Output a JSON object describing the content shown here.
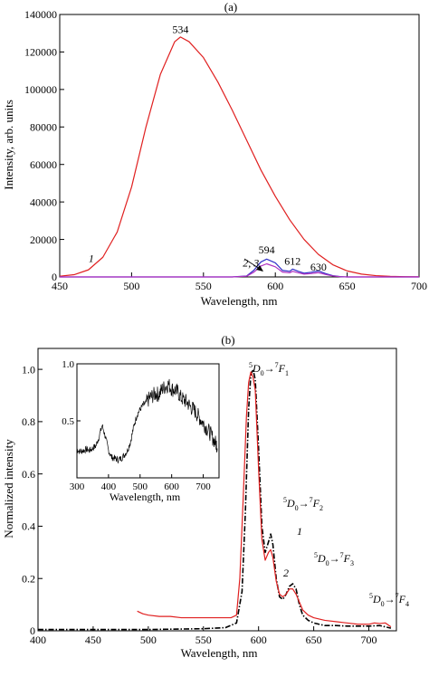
{
  "chart_data": [
    {
      "panel_label": "(a)",
      "type": "line",
      "xlabel": "Wavelength, nm",
      "ylabel": "Intensity, arb. units",
      "xlim": [
        450,
        700
      ],
      "ylim": [
        0,
        140000
      ],
      "xticks": [
        450,
        500,
        550,
        600,
        650,
        700
      ],
      "yticks": [
        0,
        20000,
        40000,
        60000,
        80000,
        100000,
        120000,
        140000
      ],
      "grid": false,
      "legend": "none",
      "series": [
        {
          "name": "1",
          "color": "#e02020",
          "x": [
            450,
            460,
            470,
            480,
            490,
            500,
            510,
            520,
            530,
            534,
            540,
            550,
            560,
            570,
            580,
            590,
            600,
            610,
            620,
            630,
            640,
            650,
            660,
            670,
            680,
            690,
            700
          ],
          "y": [
            400,
            1200,
            3800,
            10500,
            24000,
            48000,
            80000,
            108000,
            125500,
            128000,
            125500,
            117000,
            104000,
            89000,
            73000,
            57000,
            43000,
            30500,
            20000,
            12000,
            6500,
            3200,
            1500,
            700,
            300,
            120,
            60
          ]
        },
        {
          "name": "2",
          "color": "#3030c8",
          "x": [
            450,
            570,
            580,
            585,
            590,
            594,
            600,
            605,
            610,
            612,
            616,
            620,
            625,
            630,
            635,
            640,
            645,
            650,
            700
          ],
          "y": [
            0,
            0,
            500,
            3500,
            8000,
            9500,
            7500,
            3500,
            3000,
            4200,
            3000,
            2000,
            2500,
            3200,
            1800,
            700,
            200,
            0,
            0
          ]
        },
        {
          "name": "3",
          "color": "#b030c0",
          "x": [
            450,
            570,
            580,
            585,
            590,
            594,
            600,
            605,
            610,
            612,
            616,
            620,
            625,
            630,
            635,
            640,
            645,
            650,
            700
          ],
          "y": [
            0,
            0,
            400,
            2500,
            5800,
            7000,
            5400,
            2600,
            2200,
            3000,
            2200,
            1500,
            1800,
            2300,
            1300,
            500,
            150,
            0,
            0
          ]
        }
      ],
      "annotations": [
        {
          "text": "534",
          "x": 534,
          "y": 130000
        },
        {
          "text": "594",
          "x": 594,
          "y": 12500
        },
        {
          "text": "612",
          "x": 612,
          "y": 6500
        },
        {
          "text": "630",
          "x": 630,
          "y": 3500
        },
        {
          "text": "1",
          "x": 472,
          "y": 8000
        },
        {
          "text": "2, 3",
          "x": 583,
          "y": 5500
        }
      ]
    },
    {
      "panel_label": "(b)",
      "type": "line",
      "xlabel": "Wavelength, nm",
      "ylabel": "Normalized intensity",
      "xlim": [
        400,
        725
      ],
      "ylim": [
        0,
        1.08
      ],
      "xticks": [
        400,
        450,
        500,
        550,
        600,
        650,
        700
      ],
      "yticks": [
        0,
        0.2,
        0.4,
        0.6,
        0.8,
        1.0
      ],
      "grid": false,
      "legend": "none",
      "series": [
        {
          "name": "1",
          "color": "#000000",
          "style": "dash-dot",
          "x": [
            400,
            500,
            550,
            570,
            580,
            585,
            588,
            591,
            593,
            595,
            597,
            600,
            603,
            606,
            609,
            611,
            613,
            616,
            619,
            622,
            625,
            628,
            631,
            634,
            637,
            640,
            645,
            650,
            660,
            670,
            680,
            690,
            700,
            710,
            720
          ],
          "y": [
            0.005,
            0.005,
            0.008,
            0.012,
            0.03,
            0.15,
            0.45,
            0.85,
            0.98,
            1.0,
            0.96,
            0.7,
            0.4,
            0.3,
            0.34,
            0.37,
            0.33,
            0.2,
            0.13,
            0.12,
            0.14,
            0.17,
            0.18,
            0.16,
            0.1,
            0.06,
            0.04,
            0.03,
            0.02,
            0.02,
            0.018,
            0.018,
            0.018,
            0.02,
            0.01
          ]
        },
        {
          "name": "2",
          "color": "#e02020",
          "style": "solid",
          "x": [
            490,
            495,
            500,
            510,
            520,
            530,
            540,
            550,
            560,
            570,
            575,
            580,
            583,
            586,
            589,
            591,
            593,
            595,
            597,
            600,
            603,
            606,
            609,
            611,
            613,
            616,
            619,
            622,
            625,
            628,
            631,
            634,
            637,
            640,
            645,
            650,
            660,
            670,
            680,
            690,
            700,
            705,
            710,
            715,
            720
          ],
          "y": [
            0.075,
            0.065,
            0.06,
            0.055,
            0.055,
            0.05,
            0.05,
            0.05,
            0.05,
            0.05,
            0.05,
            0.06,
            0.2,
            0.5,
            0.82,
            0.95,
            0.99,
            0.97,
            0.92,
            0.62,
            0.35,
            0.27,
            0.3,
            0.31,
            0.28,
            0.19,
            0.14,
            0.13,
            0.14,
            0.16,
            0.16,
            0.14,
            0.11,
            0.08,
            0.06,
            0.05,
            0.04,
            0.035,
            0.03,
            0.025,
            0.025,
            0.03,
            0.028,
            0.03,
            0.015
          ]
        }
      ],
      "annotations": [
        {
          "text": "5",
          "part": "D0-F1",
          "x": 592,
          "y": 1.04
        },
        {
          "text": "1",
          "x": 610,
          "y": 0.38
        },
        {
          "text": "2",
          "x": 608,
          "y": 0.2
        }
      ],
      "transitions": [
        {
          "sup1": "5",
          "letter1": "D",
          "sub1": "0",
          "arrow": "→",
          "sup2": "7",
          "letter2": "F",
          "sub2": "1"
        },
        {
          "sup1": "5",
          "letter1": "D",
          "sub1": "0",
          "arrow": "→",
          "sup2": "7",
          "letter2": "F",
          "sub2": "2"
        },
        {
          "sup1": "5",
          "letter1": "D",
          "sub1": "0",
          "arrow": "→",
          "sup2": "7",
          "letter2": "F",
          "sub2": "3"
        },
        {
          "sup1": "5",
          "letter1": "D",
          "sub1": "0",
          "arrow": "→",
          "sup2": "7",
          "letter2": "F",
          "sub2": "4"
        }
      ],
      "inset": {
        "type": "line",
        "xlabel": "Wavelength, nm",
        "xlim": [
          300,
          750
        ],
        "ylim": [
          0,
          1.0
        ],
        "xticks": [
          300,
          400,
          500,
          600,
          700
        ],
        "yticks": [
          0.5,
          1.0
        ],
        "series": [
          {
            "color": "#000000",
            "x": [
              300,
              310,
              320,
              330,
              340,
              350,
              360,
              370,
              380,
              390,
              400,
              410,
              420,
              430,
              440,
              450,
              460,
              470,
              480,
              490,
              500,
              510,
              520,
              530,
              540,
              550,
              560,
              570,
              580,
              590,
              600,
              610,
              620,
              630,
              640,
              650,
              660,
              670,
              680,
              690,
              700,
              710,
              720,
              730,
              740,
              745
            ],
            "y": [
              0.25,
              0.23,
              0.24,
              0.25,
              0.24,
              0.26,
              0.28,
              0.36,
              0.46,
              0.36,
              0.24,
              0.18,
              0.17,
              0.16,
              0.17,
              0.2,
              0.24,
              0.32,
              0.45,
              0.55,
              0.6,
              0.64,
              0.66,
              0.7,
              0.72,
              0.74,
              0.73,
              0.78,
              0.8,
              0.82,
              0.78,
              0.77,
              0.75,
              0.7,
              0.68,
              0.66,
              0.62,
              0.6,
              0.56,
              0.52,
              0.48,
              0.44,
              0.4,
              0.35,
              0.3,
              0.28
            ]
          }
        ]
      }
    }
  ]
}
